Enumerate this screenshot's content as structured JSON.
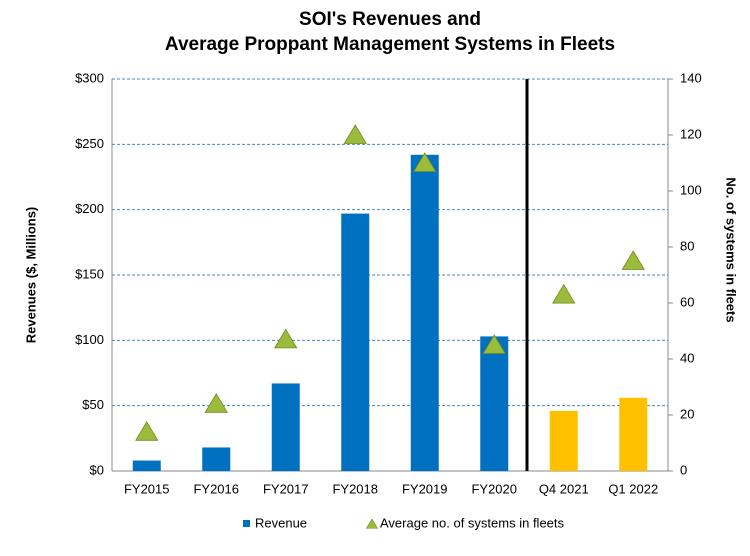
{
  "chart_data": {
    "type": "bar",
    "title": "SOI's Revenues and",
    "subtitle": "Average Proppant Management Systems in Fleets",
    "y_label": "Revenues ($, Millions)",
    "y2_label": "No. of systems in fleets",
    "categories": [
      "FY2015",
      "FY2016",
      "FY2017",
      "FY2018",
      "FY2019",
      "FY2020",
      "Q4 2021",
      "Q1 2022"
    ],
    "series": [
      {
        "name": "Revenue",
        "type": "bar",
        "color": "#0070c0",
        "colors": [
          "#0070c0",
          "#0070c0",
          "#0070c0",
          "#0070c0",
          "#0070c0",
          "#0070c0",
          "#ffc000",
          "#ffc000"
        ],
        "values": [
          8,
          18,
          67,
          197,
          242,
          103,
          46,
          56
        ]
      },
      {
        "name": "Average no. of systems in fleets",
        "type": "scatter",
        "marker": "triangle",
        "color": "#9bbb3b",
        "axis": "y2",
        "values": [
          14,
          24,
          47,
          120,
          110,
          45,
          63,
          75
        ]
      }
    ],
    "ylim": [
      0,
      300
    ],
    "yticks": [
      {
        "value": 0,
        "label": "$0"
      },
      {
        "value": 50,
        "label": "$50"
      },
      {
        "value": 100,
        "label": "$100"
      },
      {
        "value": 150,
        "label": "$150"
      },
      {
        "value": 200,
        "label": "$200"
      },
      {
        "value": 250,
        "label": "$250"
      },
      {
        "value": 300,
        "label": "$300"
      }
    ],
    "y2lim": [
      0,
      140
    ],
    "y2ticks": [
      0,
      20,
      40,
      60,
      80,
      100,
      120,
      140
    ],
    "grid": true
  }
}
